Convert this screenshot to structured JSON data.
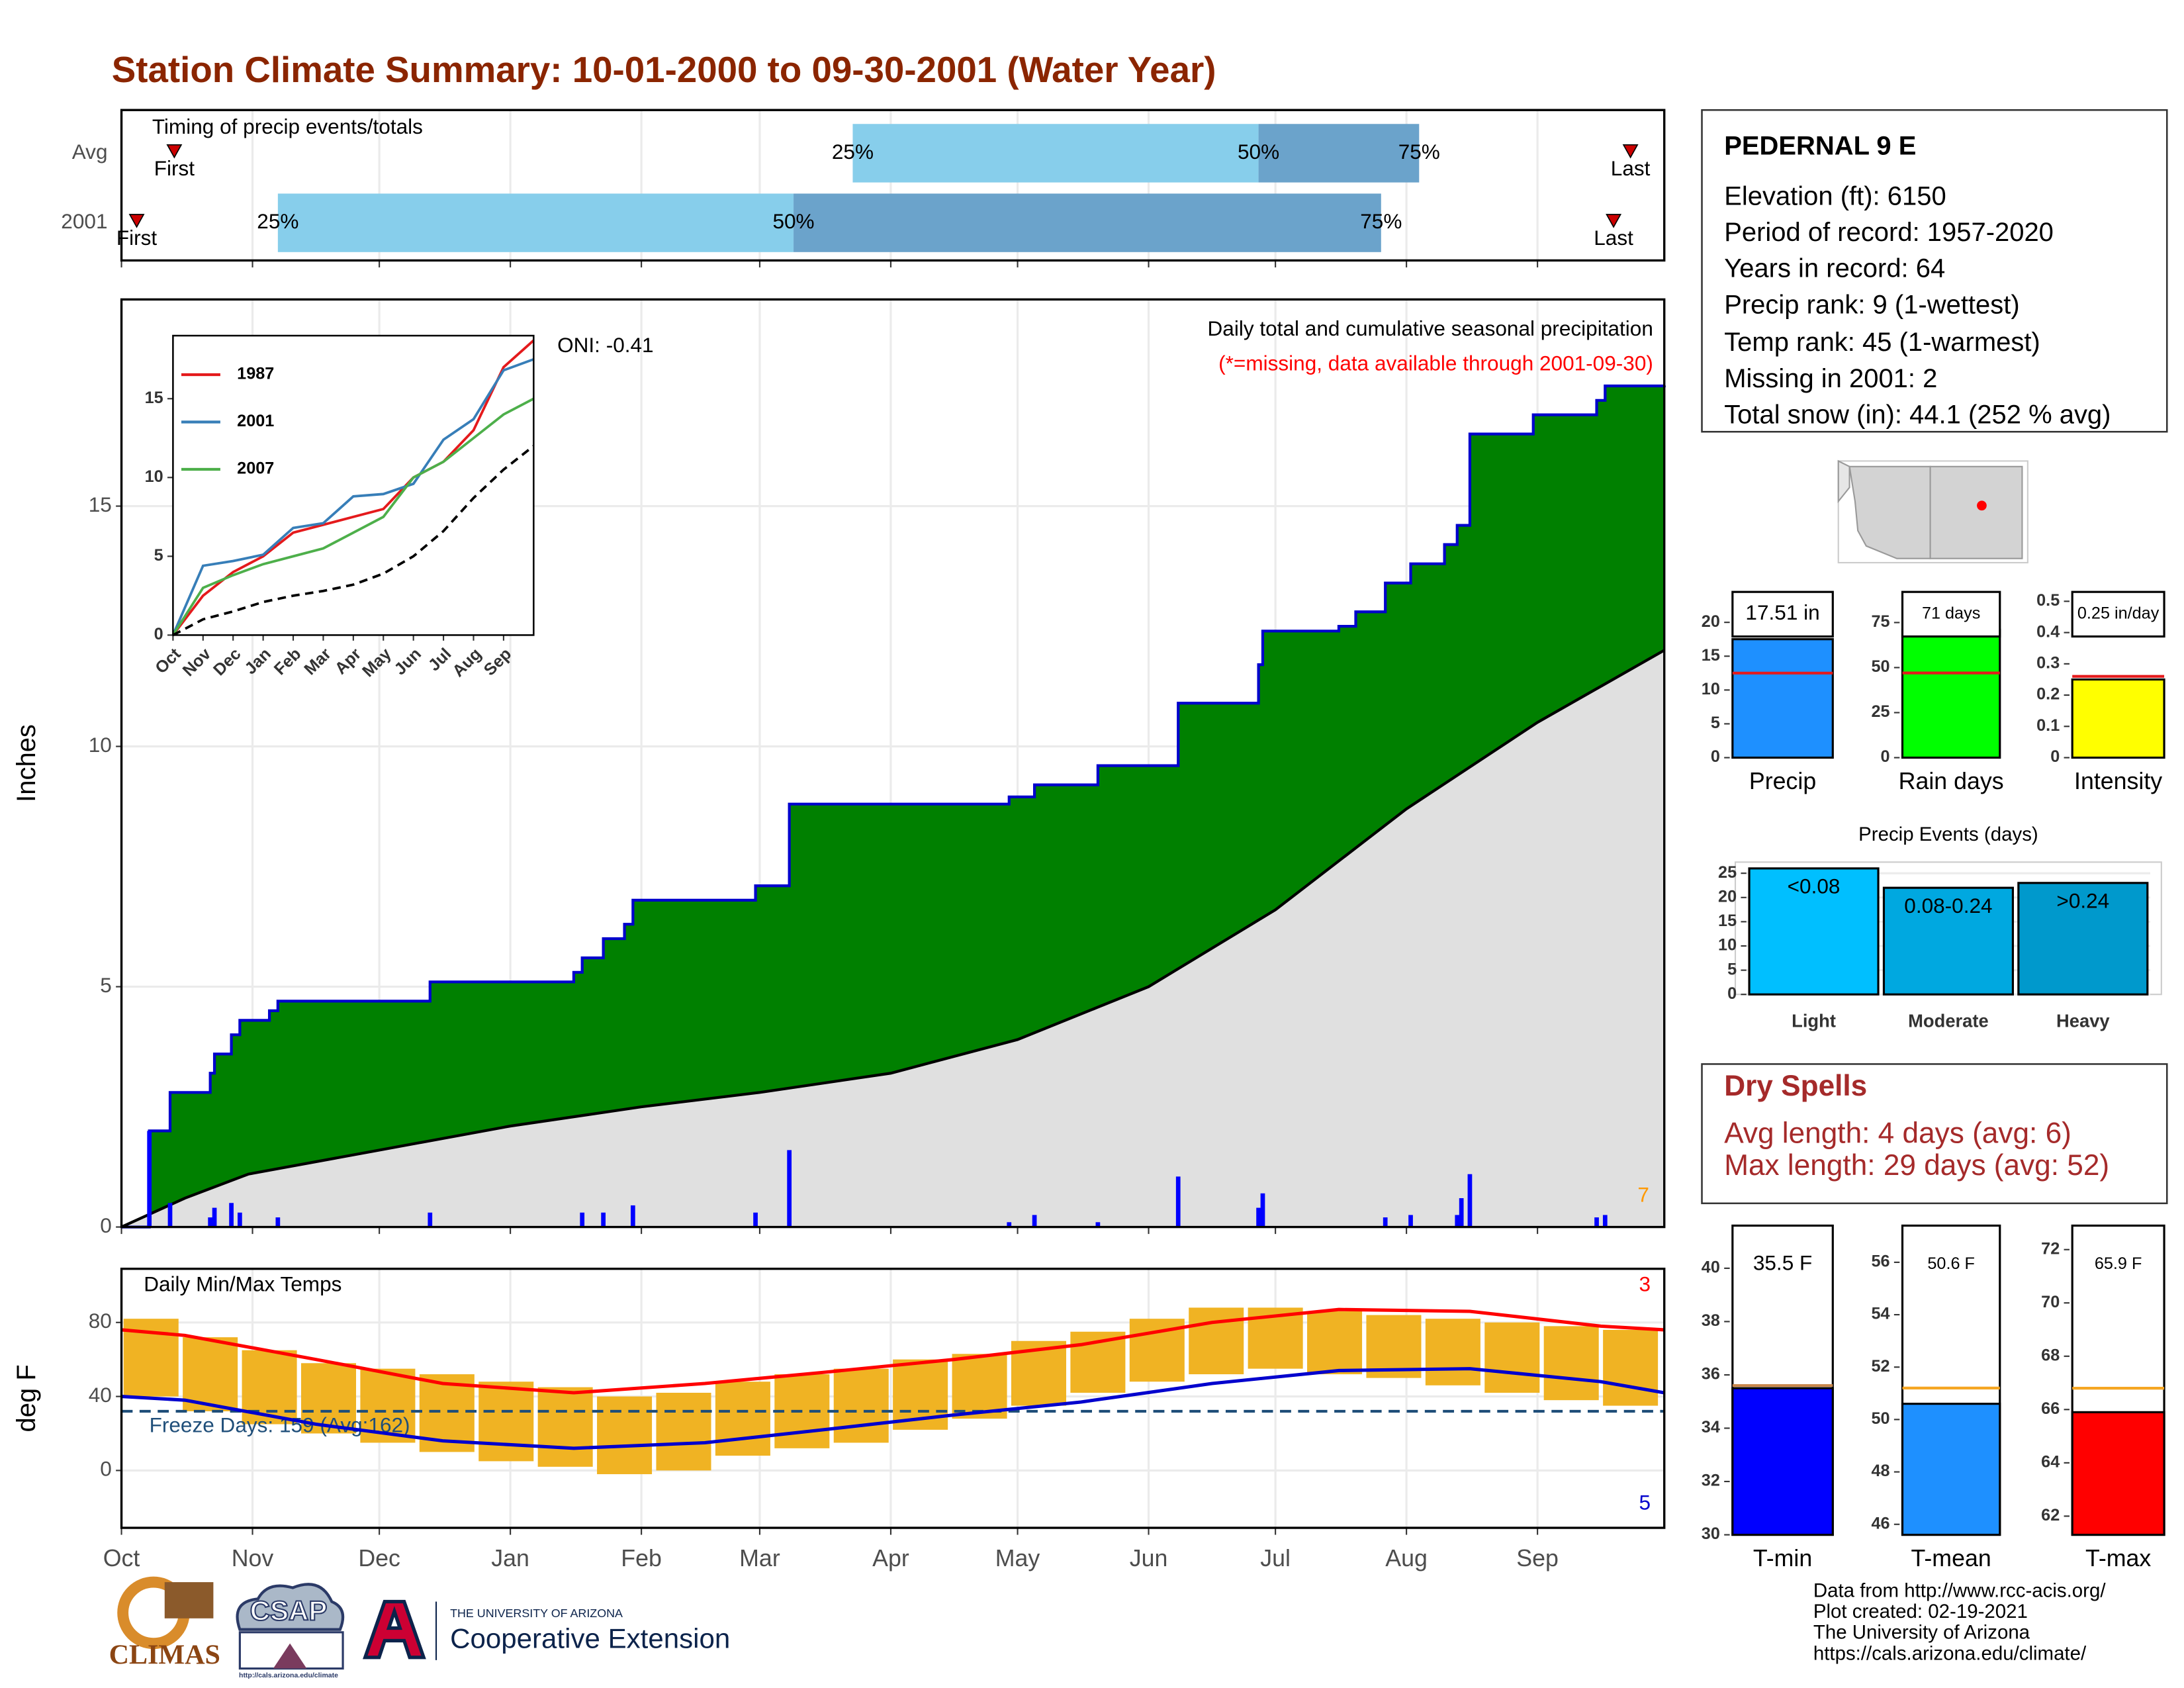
{
  "title": "Station Climate Summary: 10-01-2000 to 09-30-2001 (Water Year)",
  "station": {
    "name": "PEDERNAL 9 E",
    "lines": [
      "Elevation (ft): 6150",
      "Period of record: 1957-2020",
      "Years in record: 64",
      "Precip rank: 9 (1-wettest)",
      "Temp rank: 45 (1-warmest)",
      "Missing in 2001: 2",
      "Total snow (in): 44.1 (252 % avg)"
    ]
  },
  "dry_spells": {
    "title": "Dry Spells",
    "lines": [
      "Avg length: 4 days (avg: 6)",
      "Max length: 29 days (avg: 52)"
    ]
  },
  "credits": [
    "Data from http://www.rcc-acis.org/",
    "Plot created: 02-19-2021",
    "The University of Arizona",
    "https://cals.arizona.edu/climate/"
  ],
  "logos": {
    "climas": "CLIMAS",
    "csap": "CSAP",
    "csap_url": "http://cals.arizona.edu/climate",
    "university": "THE UNIVERSITY OF ARIZONA",
    "extension": "Cooperative Extension"
  },
  "chart_data": [
    {
      "type": "timing",
      "title": "Timing of precip events/totals",
      "categories": [
        "Avg",
        "2001"
      ],
      "xlim": [
        0,
        365
      ],
      "first": [
        12.5,
        3.6
      ],
      "first_label": "First",
      "last": [
        357,
        353
      ],
      "last_label": "Last",
      "quartiles": [
        [
          173,
          269,
          307
        ],
        [
          37,
          159,
          298
        ]
      ],
      "quartile_labels": [
        "25%",
        "50%",
        "75%"
      ],
      "colors": [
        "#87ceeb",
        "#6ba3cb"
      ]
    },
    {
      "type": "area",
      "title": "Daily total and cumulative seasonal precipitation",
      "subtitle": "(*=missing, data available through 2001-09-30)",
      "annotation": "ONI: -0.41",
      "ylabel": "Inches",
      "corner_note": {
        "value": 7,
        "color": "#ff9900"
      },
      "xlim": [
        0,
        365
      ],
      "ylim": [
        0,
        19.3
      ],
      "yticks": [
        0,
        5,
        10,
        15
      ],
      "xticks": [
        {
          "value": 0,
          "label": "Oct"
        },
        {
          "value": 31,
          "label": "Nov"
        },
        {
          "value": 61,
          "label": "Dec"
        },
        {
          "value": 92,
          "label": "Jan"
        },
        {
          "value": 123,
          "label": "Feb"
        },
        {
          "value": 151,
          "label": "Mar"
        },
        {
          "value": 182,
          "label": "Apr"
        },
        {
          "value": 212,
          "label": "May"
        },
        {
          "value": 243,
          "label": "Jun"
        },
        {
          "value": 273,
          "label": "Jul"
        },
        {
          "value": 304,
          "label": "Aug"
        },
        {
          "value": 335,
          "label": "Sep"
        }
      ],
      "grid": true,
      "series": [
        {
          "color": "#0000cd",
          "fill": "#008000",
          "step": true,
          "x": [
            0,
            6.6,
            11.5,
            21,
            22,
            26,
            28,
            35,
            37,
            73,
            107,
            109,
            114,
            119,
            121,
            150,
            158,
            210,
            216,
            231,
            250,
            269,
            270,
            288,
            292,
            299,
            305,
            313,
            316,
            319,
            334,
            349,
            351,
            365
          ],
          "values": [
            0,
            2.0,
            2.8,
            3.2,
            3.6,
            4.0,
            4.3,
            4.5,
            4.7,
            5.1,
            5.3,
            5.6,
            6.0,
            6.3,
            6.8,
            7.1,
            8.8,
            8.95,
            9.2,
            9.6,
            10.9,
            11.7,
            12.4,
            12.5,
            12.8,
            13.4,
            13.8,
            14.2,
            14.6,
            16.5,
            16.9,
            17.2,
            17.5,
            17.51
          ]
        },
        {
          "color": "#000000",
          "fill": "#e0e0e0",
          "step": false,
          "x": [
            0,
            15,
            30,
            61,
            92,
            123,
            151,
            182,
            212,
            243,
            273,
            304,
            335,
            365
          ],
          "values": [
            0,
            0.6,
            1.1,
            1.6,
            2.1,
            2.5,
            2.8,
            3.2,
            3.9,
            5.0,
            6.6,
            8.7,
            10.5,
            12.0
          ]
        }
      ],
      "daily": {
        "color": "#0000ff",
        "x": [
          6.6,
          11.5,
          21,
          22,
          26,
          28,
          37,
          73,
          109,
          114,
          121,
          150,
          158,
          210,
          216,
          231,
          250,
          269,
          270,
          299,
          305,
          316,
          317,
          319,
          349,
          351
        ],
        "values": [
          2.0,
          0.5,
          0.2,
          0.4,
          0.5,
          0.3,
          0.2,
          0.3,
          0.3,
          0.3,
          0.45,
          0.3,
          1.6,
          0.1,
          0.25,
          0.1,
          1.05,
          0.4,
          0.7,
          0.2,
          0.25,
          0.25,
          0.6,
          1.1,
          0.2,
          0.25
        ]
      }
    },
    {
      "type": "line",
      "xlim": [
        0,
        12
      ],
      "ylim": [
        0,
        19
      ],
      "yticks": [
        0,
        5,
        10,
        15
      ],
      "xticks": [
        {
          "value": 0,
          "label": "Oct"
        },
        {
          "value": 1,
          "label": "Nov"
        },
        {
          "value": 2,
          "label": "Dec"
        },
        {
          "value": 3,
          "label": "Jan"
        },
        {
          "value": 4,
          "label": "Feb"
        },
        {
          "value": 5,
          "label": "Mar"
        },
        {
          "value": 6,
          "label": "Apr"
        },
        {
          "value": 7,
          "label": "May"
        },
        {
          "value": 8,
          "label": "Jun"
        },
        {
          "value": 9,
          "label": "Jul"
        },
        {
          "value": 10,
          "label": "Aug"
        },
        {
          "value": 11,
          "label": "Sep"
        }
      ],
      "series": [
        {
          "name": "1987",
          "color": "#e41a1c",
          "x": [
            0,
            1,
            2,
            3,
            4,
            5,
            6,
            7,
            8,
            9,
            10,
            11,
            12
          ],
          "values": [
            0,
            2.5,
            4.0,
            5.0,
            6.5,
            7.0,
            7.5,
            8.0,
            10.0,
            11.0,
            13.0,
            17.0,
            18.7
          ]
        },
        {
          "name": "2001",
          "color": "#377eb8",
          "x": [
            0,
            1,
            2,
            3,
            4,
            5,
            6,
            7,
            8,
            9,
            10,
            11,
            12
          ],
          "values": [
            0,
            4.4,
            4.7,
            5.1,
            6.8,
            7.1,
            8.8,
            8.95,
            9.6,
            12.4,
            13.7,
            16.8,
            17.5
          ]
        },
        {
          "name": "2007",
          "color": "#4daf4a",
          "x": [
            0,
            1,
            2,
            3,
            4,
            5,
            6,
            7,
            8,
            9,
            10,
            11,
            12
          ],
          "values": [
            0,
            3.0,
            3.8,
            4.5,
            5.0,
            5.5,
            6.5,
            7.5,
            10.0,
            11.0,
            12.5,
            14.0,
            15.0
          ]
        },
        {
          "color": "#000000",
          "dash": true,
          "x": [
            0,
            1,
            2,
            3,
            4,
            5,
            6,
            7,
            8,
            9,
            10,
            11,
            12
          ],
          "values": [
            0,
            1.0,
            1.5,
            2.1,
            2.5,
            2.8,
            3.2,
            3.9,
            5.0,
            6.6,
            8.7,
            10.5,
            12.0
          ]
        }
      ]
    },
    {
      "type": "temps",
      "title": "Daily Min/Max Temps",
      "ylabel": "deg F",
      "xlim": [
        0,
        365
      ],
      "ylim": [
        -31,
        109
      ],
      "yticks": [
        0,
        40,
        80
      ],
      "xticks": [
        {
          "value": 0,
          "label": "Oct"
        },
        {
          "value": 31,
          "label": "Nov"
        },
        {
          "value": 61,
          "label": "Dec"
        },
        {
          "value": 92,
          "label": "Jan"
        },
        {
          "value": 123,
          "label": "Feb"
        },
        {
          "value": 151,
          "label": "Mar"
        },
        {
          "value": 182,
          "label": "Apr"
        },
        {
          "value": 212,
          "label": "May"
        },
        {
          "value": 243,
          "label": "Jun"
        },
        {
          "value": 273,
          "label": "Jul"
        },
        {
          "value": 304,
          "label": "Aug"
        },
        {
          "value": 335,
          "label": "Sep"
        }
      ],
      "grid": true,
      "bars": {
        "color": "#f0b323",
        "x": [
          7,
          21,
          35,
          49,
          63,
          77,
          91,
          105,
          119,
          133,
          147,
          161,
          175,
          189,
          203,
          217,
          231,
          245,
          259,
          273,
          287,
          301,
          315,
          329,
          343,
          357
        ],
        "low": [
          40,
          32,
          25,
          20,
          15,
          10,
          5,
          2,
          -2,
          0,
          8,
          12,
          15,
          22,
          28,
          35,
          42,
          48,
          52,
          55,
          52,
          50,
          46,
          42,
          38,
          35
        ],
        "high": [
          82,
          72,
          65,
          58,
          55,
          52,
          48,
          45,
          40,
          42,
          48,
          52,
          55,
          60,
          63,
          70,
          75,
          82,
          88,
          88,
          86,
          84,
          82,
          80,
          78,
          76
        ]
      },
      "series": [
        {
          "color": "#ff0000",
          "x": [
            0,
            15,
            46,
            76,
            107,
            138,
            166,
            197,
            227,
            258,
            288,
            319,
            350,
            365
          ],
          "values": [
            76,
            73,
            60,
            47,
            42,
            47,
            53,
            60,
            68,
            80,
            87,
            86,
            78,
            76
          ]
        },
        {
          "color": "#0000cd",
          "x": [
            0,
            15,
            46,
            76,
            107,
            138,
            166,
            197,
            227,
            258,
            288,
            319,
            350,
            365
          ],
          "values": [
            40,
            38,
            25,
            16,
            12,
            15,
            22,
            30,
            37,
            47,
            54,
            55,
            48,
            42
          ]
        }
      ],
      "freeze": {
        "value": 32,
        "label": "Freeze Days: 159 (Avg:162)",
        "color": "#1f4e79"
      },
      "corner_notes": [
        {
          "value": 3,
          "color": "#ff0000"
        },
        {
          "value": 5,
          "color": "#0000cd"
        }
      ]
    },
    {
      "type": "bar",
      "categories": [
        "Precip"
      ],
      "values": [
        17.51
      ],
      "value_labels": [
        "17.51 in"
      ],
      "avg": 12.5,
      "avg_color": "#e41a1c",
      "color": "#1e90ff",
      "ylim": [
        0,
        24.5
      ],
      "yticks": [
        0,
        5,
        10,
        15,
        20
      ]
    },
    {
      "type": "bar",
      "categories": [
        "Rain days"
      ],
      "values": [
        71
      ],
      "value_labels": [
        "71 days"
      ],
      "avg": 47,
      "avg_color": "#e41a1c",
      "color": "#00ff00",
      "ylim": [
        0,
        92
      ],
      "yticks": [
        0,
        25,
        50,
        75
      ]
    },
    {
      "type": "bar",
      "categories": [
        "Intensity"
      ],
      "values": [
        0.25
      ],
      "value_labels": [
        "0.25 in/day"
      ],
      "avg": 0.26,
      "avg_color": "#e41a1c",
      "color": "#ffff00",
      "ylim": [
        0,
        0.53
      ],
      "yticks": [
        0.0,
        0.1,
        0.2,
        0.3,
        0.4,
        0.5
      ]
    },
    {
      "type": "bar",
      "title": "Precip Events (days)",
      "categories": [
        "Light",
        "Moderate",
        "Heavy"
      ],
      "values": [
        26,
        22,
        23
      ],
      "bin_labels": [
        "<0.08",
        "0.08-0.24",
        ">0.24"
      ],
      "colors": [
        "#00bfff",
        "#00a8e0",
        "#0099cc"
      ],
      "ylim": [
        0,
        27.3
      ],
      "yticks": [
        0,
        5,
        10,
        15,
        20,
        25
      ],
      "grid": true
    },
    {
      "type": "bar",
      "categories": [
        "T-min"
      ],
      "values": [
        35.5
      ],
      "value_labels": [
        "35.5 F"
      ],
      "avg": 35.6,
      "avg_color": "#c8864a",
      "color": "#0000ff",
      "ylim": [
        30,
        41.6
      ],
      "yticks": [
        30,
        32,
        34,
        36,
        38,
        40
      ],
      "full_box": true
    },
    {
      "type": "bar",
      "categories": [
        "T-mean"
      ],
      "values": [
        50.6
      ],
      "value_labels": [
        "50.6 F"
      ],
      "avg": 51.2,
      "avg_color": "#f5a623",
      "color": "#1e90ff",
      "ylim": [
        45.6,
        57.4
      ],
      "yticks": [
        46,
        48,
        50,
        52,
        54,
        56
      ],
      "full_box": true
    },
    {
      "type": "bar",
      "categories": [
        "T-max"
      ],
      "values": [
        65.9
      ],
      "value_labels": [
        "65.9 F"
      ],
      "avg": 66.8,
      "avg_color": "#f5a623",
      "color": "#ff0000",
      "ylim": [
        61.3,
        72.9
      ],
      "yticks": [
        62,
        64,
        66,
        68,
        70,
        72
      ],
      "full_box": true
    }
  ]
}
